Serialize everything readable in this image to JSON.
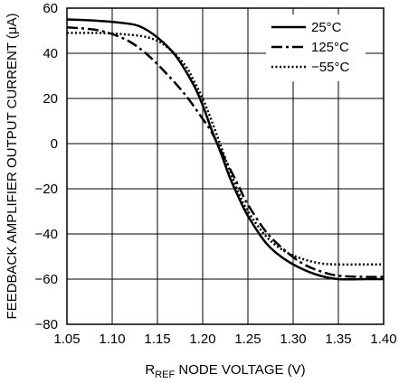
{
  "chart_data": {
    "type": "line",
    "xlabel": {
      "main": "R",
      "sub": "REF",
      "rest": " NODE VOLTAGE (V)"
    },
    "ylabel": "FEEDBACK AMPLIFIER OUTPUT CURRENT (μA)",
    "xlim": [
      1.05,
      1.4
    ],
    "ylim": [
      -80,
      60
    ],
    "x_ticks": [
      "1.05",
      "1.10",
      "1.15",
      "1.20",
      "1.25",
      "1.30",
      "1.35",
      "1.40"
    ],
    "y_ticks": [
      "60",
      "40",
      "20",
      "0",
      "−20",
      "−40",
      "−60",
      "−80"
    ],
    "grid": true,
    "legend_position": "top-right",
    "series": [
      {
        "name": "25°C",
        "style": "solid",
        "color": "#000000",
        "points": [
          [
            1.05,
            55
          ],
          [
            1.08,
            54.5
          ],
          [
            1.11,
            53.5
          ],
          [
            1.13,
            52
          ],
          [
            1.15,
            47
          ],
          [
            1.17,
            39
          ],
          [
            1.19,
            26
          ],
          [
            1.2,
            17
          ],
          [
            1.21,
            6
          ],
          [
            1.22,
            -4
          ],
          [
            1.23,
            -15
          ],
          [
            1.24,
            -24
          ],
          [
            1.25,
            -32
          ],
          [
            1.27,
            -44
          ],
          [
            1.29,
            -51
          ],
          [
            1.31,
            -55.5
          ],
          [
            1.33,
            -58.5
          ],
          [
            1.35,
            -60
          ],
          [
            1.38,
            -60
          ],
          [
            1.4,
            -60
          ]
        ]
      },
      {
        "name": "125°C",
        "style": "dashdot",
        "color": "#000000",
        "points": [
          [
            1.05,
            51.5
          ],
          [
            1.08,
            50.5
          ],
          [
            1.1,
            48.5
          ],
          [
            1.12,
            45
          ],
          [
            1.14,
            39
          ],
          [
            1.16,
            31
          ],
          [
            1.18,
            22
          ],
          [
            1.2,
            11
          ],
          [
            1.21,
            5
          ],
          [
            1.22,
            -3
          ],
          [
            1.23,
            -11
          ],
          [
            1.24,
            -19
          ],
          [
            1.25,
            -27
          ],
          [
            1.27,
            -39
          ],
          [
            1.29,
            -47
          ],
          [
            1.31,
            -53
          ],
          [
            1.33,
            -56.5
          ],
          [
            1.35,
            -58.5
          ],
          [
            1.38,
            -59
          ],
          [
            1.4,
            -59
          ]
        ]
      },
      {
        "name": "−55°C",
        "style": "dotted",
        "color": "#000000",
        "points": [
          [
            1.05,
            49
          ],
          [
            1.08,
            49
          ],
          [
            1.11,
            48.5
          ],
          [
            1.14,
            47
          ],
          [
            1.16,
            43
          ],
          [
            1.18,
            35
          ],
          [
            1.19,
            28
          ],
          [
            1.2,
            20
          ],
          [
            1.21,
            10
          ],
          [
            1.22,
            -1
          ],
          [
            1.23,
            -12
          ],
          [
            1.24,
            -22
          ],
          [
            1.25,
            -30
          ],
          [
            1.27,
            -41
          ],
          [
            1.29,
            -47.5
          ],
          [
            1.31,
            -51
          ],
          [
            1.33,
            -53
          ],
          [
            1.35,
            -53.5
          ],
          [
            1.38,
            -53.5
          ],
          [
            1.4,
            -53.5
          ]
        ]
      }
    ]
  }
}
